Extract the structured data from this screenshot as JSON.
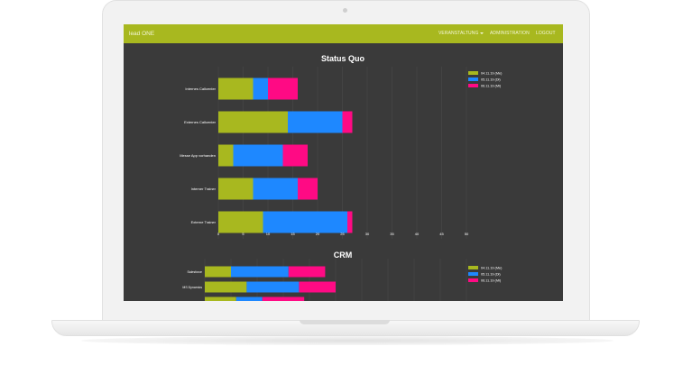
{
  "app": {
    "brand": "lead ONE"
  },
  "nav": {
    "veranstaltung": "VERANSTALTUNG",
    "administration": "ADMINISTRATION",
    "logout": "LOGOUT"
  },
  "colors": {
    "accent": "#a8b81f",
    "series1": "#a8b81f",
    "series2": "#1e88ff",
    "series3": "#ff0a84",
    "background": "#3a3a3a"
  },
  "chart_data": [
    {
      "type": "bar",
      "orientation": "horizontal",
      "stacked": true,
      "title": "Status Quo",
      "categories": [
        "Internes Callcenter",
        "Externes Callcenter",
        "Messe App vorhanden",
        "Interner Trainer",
        "Externe Trainer"
      ],
      "series": [
        {
          "name": "04.11.19 (Me)",
          "color": "#a8b81f",
          "values": [
            7,
            14,
            3,
            7,
            9
          ]
        },
        {
          "name": "05.11.19 (Di)",
          "color": "#1e88ff",
          "values": [
            3,
            11,
            10,
            9,
            17
          ]
        },
        {
          "name": "06.11.19 (Mi)",
          "color": "#ff0a84",
          "values": [
            6,
            2,
            5,
            4,
            1
          ]
        }
      ],
      "xticks": [
        "0",
        "5",
        "10",
        "15",
        "20",
        "25",
        "30",
        "35",
        "40",
        "45",
        "50"
      ],
      "xlim": [
        0,
        50
      ],
      "grid": true,
      "legend": "top-right"
    },
    {
      "type": "bar",
      "orientation": "horizontal",
      "stacked": true,
      "title": "CRM",
      "categories": [
        "Salesforce",
        "MS Dynamics",
        ""
      ],
      "series": [
        {
          "name": "04.11.19 (Me)",
          "color": "#a8b81f",
          "values": [
            5,
            8,
            6
          ]
        },
        {
          "name": "05.11.19 (Di)",
          "color": "#1e88ff",
          "values": [
            11,
            10,
            5
          ]
        },
        {
          "name": "06.11.19 (Mi)",
          "color": "#ff0a84",
          "values": [
            7,
            7,
            8
          ]
        }
      ],
      "xlim": [
        0,
        50
      ],
      "grid": true,
      "legend": "top-right"
    }
  ]
}
